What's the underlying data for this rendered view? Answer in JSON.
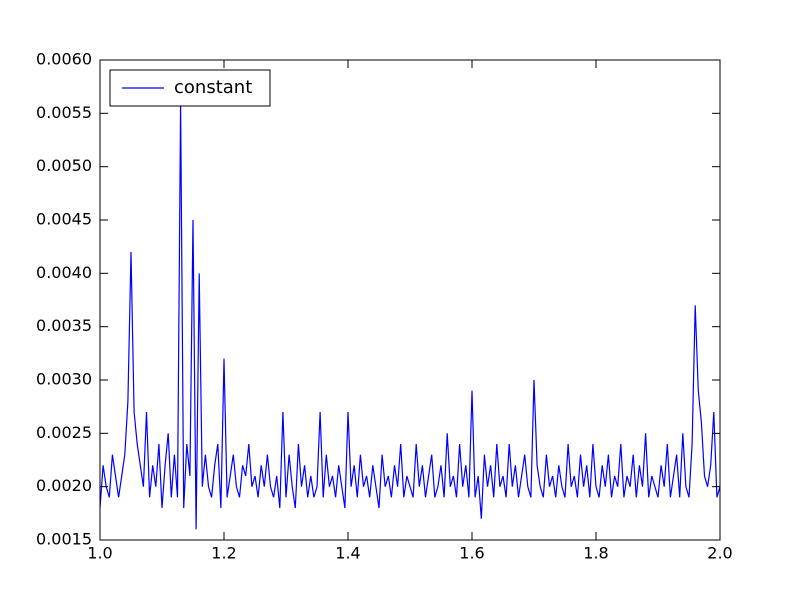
{
  "chart_data": {
    "type": "line",
    "x": [
      1.0,
      1.005,
      1.01,
      1.015,
      1.02,
      1.025,
      1.03,
      1.035,
      1.04,
      1.045,
      1.05,
      1.055,
      1.06,
      1.065,
      1.07,
      1.075,
      1.08,
      1.085,
      1.09,
      1.095,
      1.1,
      1.105,
      1.11,
      1.115,
      1.12,
      1.125,
      1.13,
      1.135,
      1.14,
      1.145,
      1.15,
      1.155,
      1.16,
      1.165,
      1.17,
      1.175,
      1.18,
      1.185,
      1.19,
      1.195,
      1.2,
      1.205,
      1.21,
      1.215,
      1.22,
      1.225,
      1.23,
      1.235,
      1.24,
      1.245,
      1.25,
      1.255,
      1.26,
      1.265,
      1.27,
      1.275,
      1.28,
      1.285,
      1.29,
      1.295,
      1.3,
      1.305,
      1.31,
      1.315,
      1.32,
      1.325,
      1.33,
      1.335,
      1.34,
      1.345,
      1.35,
      1.355,
      1.36,
      1.365,
      1.37,
      1.375,
      1.38,
      1.385,
      1.39,
      1.395,
      1.4,
      1.405,
      1.41,
      1.415,
      1.42,
      1.425,
      1.43,
      1.435,
      1.44,
      1.445,
      1.45,
      1.455,
      1.46,
      1.465,
      1.47,
      1.475,
      1.48,
      1.485,
      1.49,
      1.495,
      1.5,
      1.505,
      1.51,
      1.515,
      1.52,
      1.525,
      1.53,
      1.535,
      1.54,
      1.545,
      1.55,
      1.555,
      1.56,
      1.565,
      1.57,
      1.575,
      1.58,
      1.585,
      1.59,
      1.595,
      1.6,
      1.605,
      1.61,
      1.615,
      1.62,
      1.625,
      1.63,
      1.635,
      1.64,
      1.645,
      1.65,
      1.655,
      1.66,
      1.665,
      1.67,
      1.675,
      1.68,
      1.685,
      1.69,
      1.695,
      1.7,
      1.705,
      1.71,
      1.715,
      1.72,
      1.725,
      1.73,
      1.735,
      1.74,
      1.745,
      1.75,
      1.755,
      1.76,
      1.765,
      1.77,
      1.775,
      1.78,
      1.785,
      1.79,
      1.795,
      1.8,
      1.805,
      1.81,
      1.815,
      1.82,
      1.825,
      1.83,
      1.835,
      1.84,
      1.845,
      1.85,
      1.855,
      1.86,
      1.865,
      1.87,
      1.875,
      1.88,
      1.885,
      1.89,
      1.895,
      1.9,
      1.905,
      1.91,
      1.915,
      1.92,
      1.925,
      1.93,
      1.935,
      1.94,
      1.945,
      1.95,
      1.955,
      1.96,
      1.965,
      1.97,
      1.975,
      1.98,
      1.985,
      1.99,
      1.995,
      2.0
    ],
    "series": [
      {
        "name": "constant",
        "color": "#0000ff",
        "values": [
          0.0018,
          0.0022,
          0.002,
          0.0019,
          0.0023,
          0.0021,
          0.0019,
          0.0021,
          0.0023,
          0.0028,
          0.0042,
          0.0027,
          0.0024,
          0.0022,
          0.002,
          0.0027,
          0.0019,
          0.0022,
          0.002,
          0.0024,
          0.0018,
          0.0022,
          0.0025,
          0.0019,
          0.0023,
          0.0019,
          0.0056,
          0.0018,
          0.0024,
          0.0021,
          0.0045,
          0.0016,
          0.004,
          0.002,
          0.0023,
          0.002,
          0.0019,
          0.0022,
          0.0024,
          0.0018,
          0.0032,
          0.0019,
          0.0021,
          0.0023,
          0.002,
          0.0019,
          0.0022,
          0.0021,
          0.0024,
          0.002,
          0.0021,
          0.0019,
          0.0022,
          0.002,
          0.0023,
          0.002,
          0.0019,
          0.0021,
          0.0018,
          0.0027,
          0.0019,
          0.0023,
          0.002,
          0.0018,
          0.0024,
          0.002,
          0.0022,
          0.0019,
          0.0021,
          0.0019,
          0.002,
          0.0027,
          0.0019,
          0.0023,
          0.002,
          0.0021,
          0.0019,
          0.0022,
          0.002,
          0.0018,
          0.0027,
          0.002,
          0.0022,
          0.0019,
          0.0023,
          0.002,
          0.0021,
          0.0019,
          0.0022,
          0.002,
          0.0018,
          0.0023,
          0.002,
          0.0021,
          0.0019,
          0.0022,
          0.002,
          0.0024,
          0.0019,
          0.0021,
          0.002,
          0.0019,
          0.0024,
          0.002,
          0.0022,
          0.0019,
          0.0021,
          0.0023,
          0.0019,
          0.002,
          0.0022,
          0.0019,
          0.0025,
          0.002,
          0.0021,
          0.0019,
          0.0024,
          0.002,
          0.0022,
          0.0019,
          0.0029,
          0.0019,
          0.0021,
          0.0017,
          0.0023,
          0.002,
          0.0022,
          0.0019,
          0.0024,
          0.002,
          0.0021,
          0.0019,
          0.0024,
          0.002,
          0.0022,
          0.0019,
          0.0021,
          0.0023,
          0.002,
          0.0019,
          0.003,
          0.0022,
          0.002,
          0.0019,
          0.0023,
          0.002,
          0.0021,
          0.0019,
          0.0022,
          0.002,
          0.0019,
          0.0024,
          0.002,
          0.0021,
          0.0019,
          0.0023,
          0.002,
          0.0022,
          0.0019,
          0.0024,
          0.002,
          0.0019,
          0.0022,
          0.002,
          0.0023,
          0.0019,
          0.0021,
          0.002,
          0.0024,
          0.0019,
          0.0021,
          0.002,
          0.0023,
          0.0019,
          0.0022,
          0.002,
          0.0025,
          0.0019,
          0.0021,
          0.002,
          0.0019,
          0.0022,
          0.002,
          0.0024,
          0.0019,
          0.0021,
          0.0023,
          0.0019,
          0.0025,
          0.002,
          0.0019,
          0.0024,
          0.0037,
          0.0029,
          0.0026,
          0.0021,
          0.002,
          0.0022,
          0.0027,
          0.0019,
          0.002
        ]
      }
    ],
    "xlim": [
      1.0,
      2.0
    ],
    "xticks": [
      {
        "value": 1.0,
        "label": "1.0"
      },
      1.2,
      1.4,
      1.6,
      1.8,
      {
        "value": 2.0,
        "label": "2.0"
      }
    ],
    "ylim": [
      0.0015,
      0.006
    ],
    "yticks": [
      0.0015,
      {
        "value": 0.002,
        "label": "0.0020"
      },
      0.0025,
      {
        "value": 0.003,
        "label": "0.0030"
      },
      0.0035,
      {
        "value": 0.004,
        "label": "0.0040"
      },
      0.0045,
      {
        "value": 0.005,
        "label": "0.0050"
      },
      0.0055,
      {
        "value": 0.006,
        "label": "0.0060"
      }
    ],
    "grid": false,
    "legend": "upper left"
  }
}
